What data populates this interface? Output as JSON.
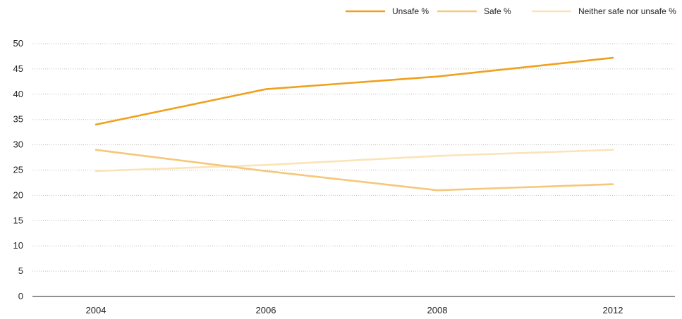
{
  "chart_data": {
    "type": "line",
    "title": "",
    "xlabel": "",
    "ylabel": "",
    "categories": [
      "2004",
      "2006",
      "2008",
      "2012"
    ],
    "ylim": [
      0,
      50
    ],
    "yticks": [
      "0",
      "5",
      "10",
      "15",
      "20",
      "25",
      "30",
      "35",
      "40",
      "45",
      "50"
    ],
    "grid": true,
    "legend_position": "top-right",
    "series": [
      {
        "name": "Unsafe %",
        "color": "#f0a01c",
        "values": [
          34,
          41,
          43.5,
          47.2
        ]
      },
      {
        "name": "Safe %",
        "color": "#f6c77a",
        "values": [
          29,
          24.8,
          21,
          22.2
        ]
      },
      {
        "name": "Neither safe nor unsafe %",
        "color": "#fbe3b8",
        "values": [
          24.8,
          26,
          27.8,
          29
        ]
      }
    ]
  }
}
